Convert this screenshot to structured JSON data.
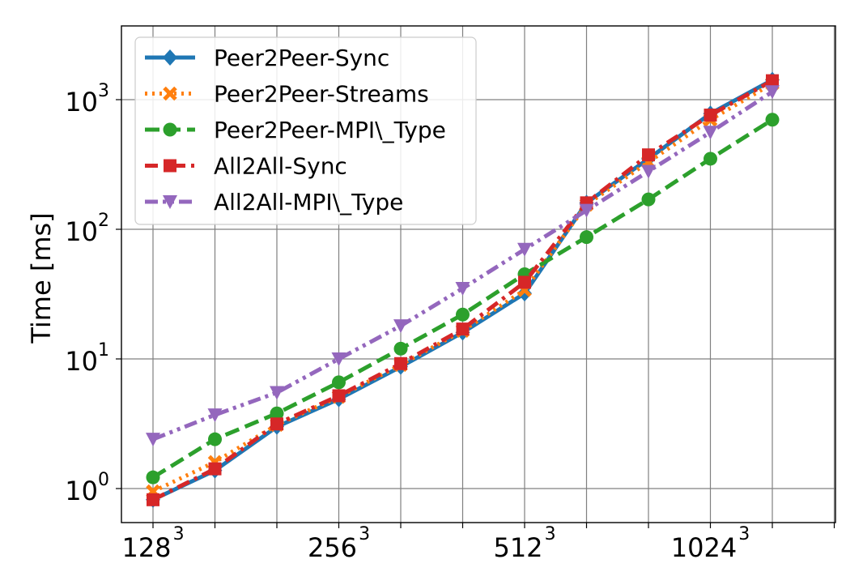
{
  "chart_data": {
    "type": "line",
    "title": "",
    "xlabel": "",
    "ylabel": "Time [ms]",
    "y_scale": "log",
    "ylim": [
      0.6,
      2200
    ],
    "grid": true,
    "legend_position": "top-left",
    "x_tick_labels": [
      {
        "base": "128",
        "exp": "3"
      },
      {
        "base": "256",
        "exp": "3"
      },
      {
        "base": "512",
        "exp": "3"
      },
      {
        "base": "1024",
        "exp": "3"
      }
    ],
    "y_tick_labels": [
      {
        "value": 1,
        "base": "10",
        "exp": "0"
      },
      {
        "value": 10,
        "base": "10",
        "exp": "1"
      },
      {
        "value": 100,
        "base": "10",
        "exp": "2"
      },
      {
        "value": 1000,
        "base": "10",
        "exp": "3"
      }
    ],
    "series": [
      {
        "name": "Peer2Peer-Sync",
        "color": "#1f77b4",
        "style": "solid",
        "marker": "diamond",
        "values": [
          0.82,
          1.38,
          3.0,
          4.9,
          8.7,
          16.0,
          32.0,
          160.0,
          350.0,
          780.0,
          1420.0
        ]
      },
      {
        "name": "Peer2Peer-Streams",
        "color": "#ff7f0e",
        "style": "dotted",
        "marker": "x",
        "values": [
          0.95,
          1.6,
          3.1,
          5.1,
          9.0,
          16.5,
          34.0,
          155.0,
          330.0,
          700.0,
          1330.0
        ]
      },
      {
        "name": "Peer2Peer-MPI\\_Type",
        "color": "#2ca02c",
        "style": "dashed",
        "marker": "circle",
        "values": [
          1.22,
          2.4,
          3.8,
          6.6,
          12.0,
          22.0,
          45.0,
          87.0,
          170.0,
          350.0,
          700.0
        ]
      },
      {
        "name": "All2All-Sync",
        "color": "#d62728",
        "style": "dashdot",
        "marker": "square",
        "values": [
          0.82,
          1.42,
          3.15,
          5.2,
          9.2,
          17.0,
          39.0,
          160.0,
          375.0,
          760.0,
          1400.0
        ]
      },
      {
        "name": "All2All-MPI\\_Type",
        "color": "#9467bd",
        "style": "dashdotdot",
        "marker": "triangle-down",
        "values": [
          2.4,
          3.7,
          5.5,
          10.0,
          18.0,
          35.0,
          70.0,
          140.0,
          280.0,
          560.0,
          1150.0
        ]
      }
    ]
  }
}
